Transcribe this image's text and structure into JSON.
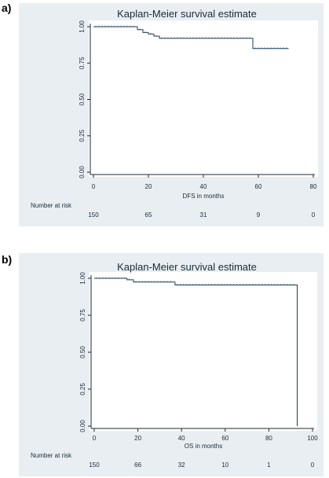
{
  "chart_data": [
    {
      "panel_label": "a)",
      "type": "line",
      "title": "Kaplan-Meier survival estimate",
      "xlabel": "DFS in months",
      "ylabel": "",
      "xlim": [
        0,
        80
      ],
      "ylim": [
        0,
        1
      ],
      "x_ticks": [
        "0",
        "20",
        "40",
        "60",
        "80"
      ],
      "y_ticks": [
        "0.00",
        "0.25",
        "0.50",
        "0.75",
        "1.00"
      ],
      "grid": false,
      "series": [
        {
          "color": "#1f3b57",
          "x": [
            0,
            16,
            16,
            18,
            18,
            20,
            20,
            22,
            22,
            24,
            24,
            58,
            58,
            71
          ],
          "y": [
            1.0,
            1.0,
            0.98,
            0.98,
            0.96,
            0.96,
            0.95,
            0.95,
            0.935,
            0.935,
            0.92,
            0.92,
            0.85,
            0.85
          ]
        }
      ],
      "risk_table": {
        "label": "Number at risk",
        "values": [
          "150",
          "65",
          "31",
          "9",
          "0"
        ]
      }
    },
    {
      "panel_label": "b)",
      "type": "line",
      "title": "Kaplan-Meier survival estimate",
      "xlabel": "OS in months",
      "ylabel": "",
      "xlim": [
        0,
        100
      ],
      "ylim": [
        0,
        1
      ],
      "x_ticks": [
        "0",
        "20",
        "40",
        "60",
        "80",
        "100"
      ],
      "y_ticks": [
        "0.00",
        "0.25",
        "0.50",
        "0.75",
        "1.00"
      ],
      "grid": false,
      "series": [
        {
          "color": "#1f3b57",
          "x": [
            0,
            15,
            15,
            18,
            18,
            37,
            37,
            93,
            93
          ],
          "y": [
            1.0,
            1.0,
            0.99,
            0.99,
            0.975,
            0.975,
            0.955,
            0.955,
            0.0
          ]
        }
      ],
      "risk_table": {
        "label": "Number at risk",
        "values": [
          "150",
          "66",
          "32",
          "10",
          "1",
          "0"
        ]
      }
    }
  ]
}
